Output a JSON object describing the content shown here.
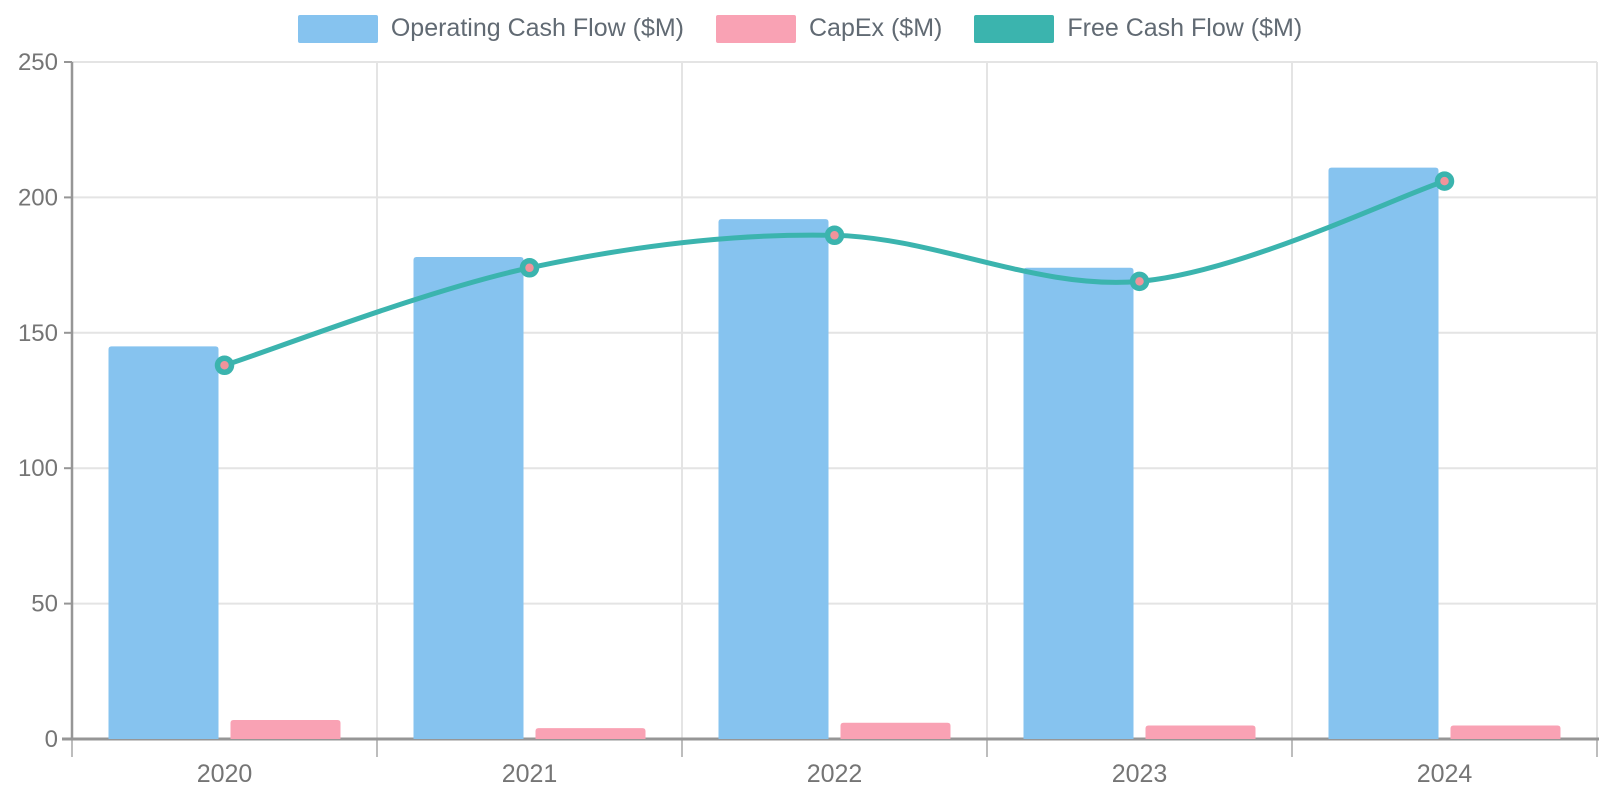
{
  "chart_data": {
    "type": "combo-bar-line",
    "title": "",
    "xlabel": "",
    "ylabel": "",
    "categories": [
      "2020",
      "2021",
      "2022",
      "2023",
      "2024"
    ],
    "series": [
      {
        "name": "Operating Cash Flow ($M)",
        "type": "bar",
        "color": "#86C3EF",
        "values": [
          145,
          178,
          192,
          174,
          211
        ]
      },
      {
        "name": "CapEx ($M)",
        "type": "bar",
        "color": "#F9A2B4",
        "values": [
          7,
          4,
          6,
          5,
          5
        ]
      },
      {
        "name": "Free Cash Flow ($M)",
        "type": "line",
        "color": "#3BB4AE",
        "point_fill": "#F2939B",
        "values": [
          138,
          174,
          186,
          169,
          206
        ]
      }
    ],
    "ylim": [
      0,
      250
    ],
    "yticks": [
      0,
      50,
      100,
      150,
      200,
      250
    ],
    "grid": true,
    "legend_position": "top",
    "axis_color": "#969696",
    "grid_color": "#E4E4E4",
    "tick_label_color": "#757575"
  }
}
